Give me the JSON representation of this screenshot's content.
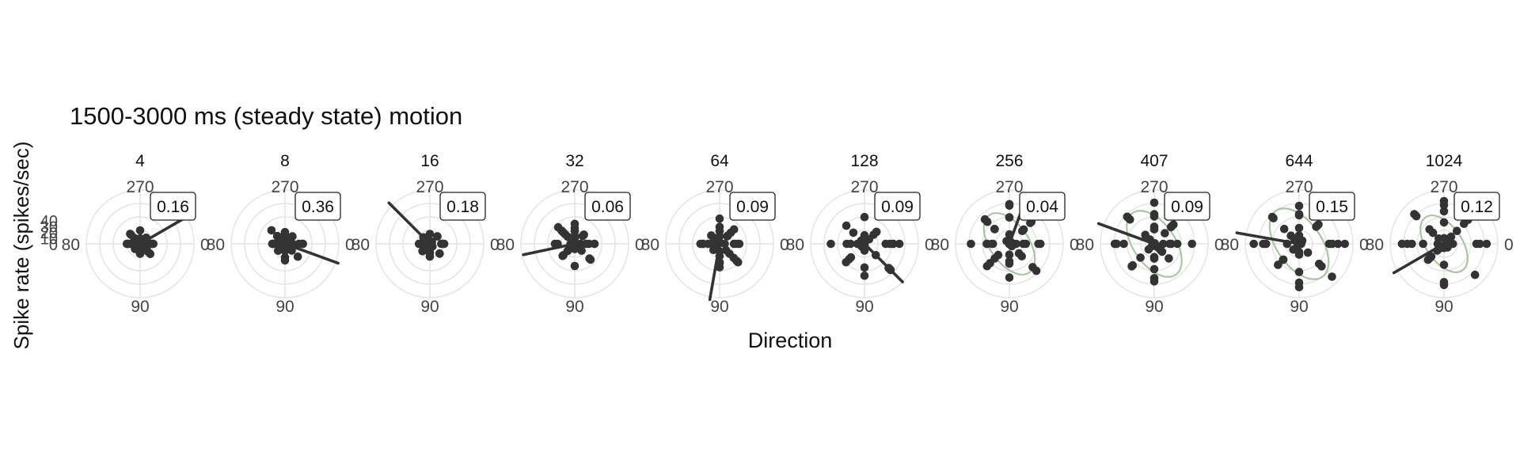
{
  "chart_data": {
    "type": "polar-scatter",
    "title": "1500-3000 ms (steady state) motion",
    "xlabel": "Direction",
    "ylabel": "Spike rate (spikes/sec)",
    "radial_ticks": [
      "0",
      "10",
      "20",
      "30",
      "40"
    ],
    "angle_labels": {
      "top": "270",
      "left": "80",
      "right": "0",
      "bottom": "90"
    },
    "rlim": [
      0,
      40
    ],
    "grid": true,
    "colors": {
      "points": "#333333",
      "fit": "#a7c7a0",
      "grid": "#e4e4e4",
      "text": "#444444"
    },
    "panels": [
      {
        "label": "4",
        "value": "0.16",
        "vector": {
          "angle": -30,
          "r": 38
        },
        "spread": 9,
        "fit": 0
      },
      {
        "label": "8",
        "value": "0.36",
        "vector": {
          "angle": 20,
          "r": 42
        },
        "spread": 12,
        "fit": 0
      },
      {
        "label": "16",
        "value": "0.18",
        "vector": {
          "angle": 225,
          "r": 43
        },
        "spread": 9,
        "fit": 0
      },
      {
        "label": "32",
        "value": "0.06",
        "vector": {
          "angle": 168,
          "r": 39
        },
        "spread": 14,
        "fit": 0
      },
      {
        "label": "64",
        "value": "0.09",
        "vector": {
          "angle": 100,
          "r": 42
        },
        "spread": 16,
        "fit": 0
      },
      {
        "label": "128",
        "value": "0.09",
        "vector": {
          "angle": 45,
          "r": 40
        },
        "spread": 22,
        "fit": 0
      },
      {
        "label": "256",
        "value": "0.04",
        "vector": {
          "angle": -70,
          "r": 38
        },
        "spread": 25,
        "fit": 26
      },
      {
        "label": "407",
        "value": "0.09",
        "vector": {
          "angle": 200,
          "r": 44
        },
        "spread": 27,
        "fit": 28
      },
      {
        "label": "644",
        "value": "0.15",
        "vector": {
          "angle": 190,
          "r": 47
        },
        "spread": 30,
        "fit": 30
      },
      {
        "label": "1024",
        "value": "0.12",
        "vector": {
          "angle": 150,
          "r": 43
        },
        "spread": 28,
        "fit": 24
      }
    ]
  }
}
